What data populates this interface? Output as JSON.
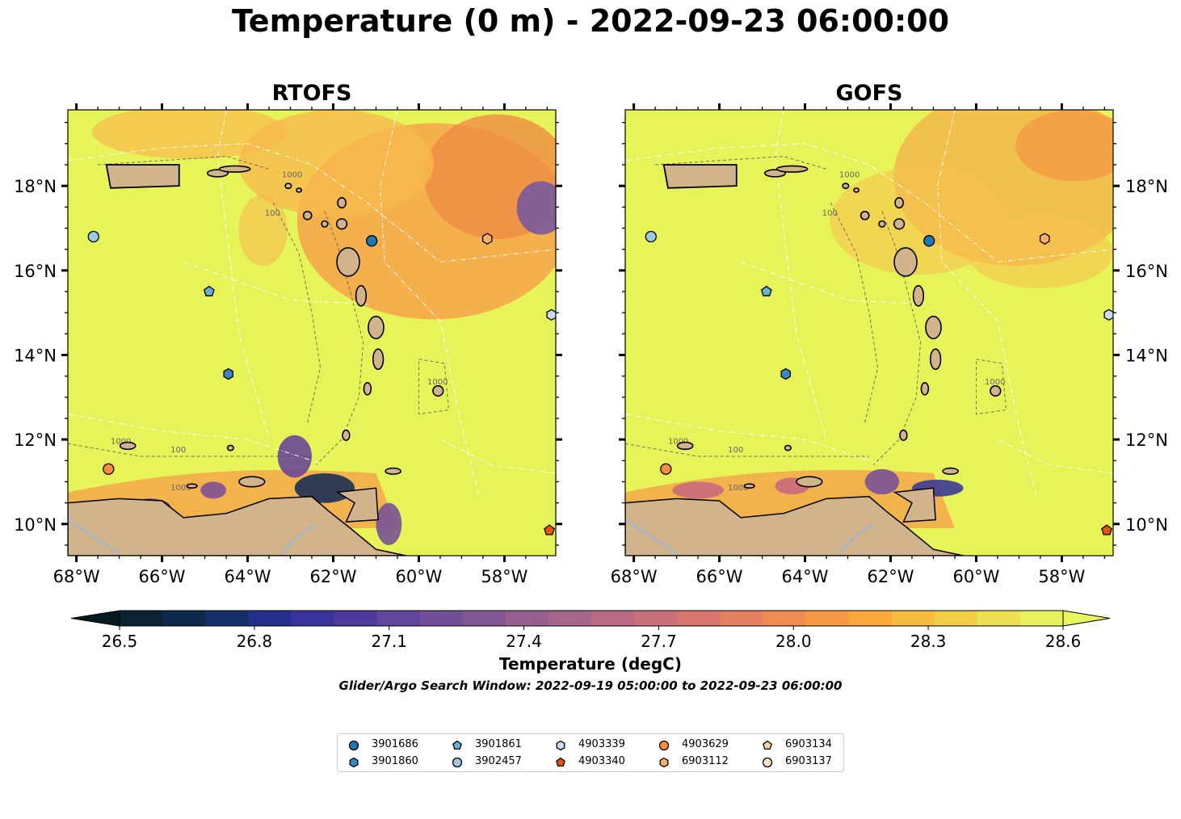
{
  "title": "Temperature (0 m) - 2022-09-23 06:00:00",
  "panels": [
    {
      "title": "RTOFS"
    },
    {
      "title": "GOFS"
    }
  ],
  "lon_ticks": [
    "68°W",
    "66°W",
    "64°W",
    "62°W",
    "60°W",
    "58°W"
  ],
  "lat_ticks": [
    "18°N",
    "16°N",
    "14°N",
    "12°N",
    "10°N"
  ],
  "contour_labels": [
    "1000",
    "100",
    "1000",
    "100",
    "1000",
    "1000"
  ],
  "colorbar": {
    "label": "Temperature (degC)",
    "ticks": [
      "26.5",
      "26.8",
      "27.1",
      "27.4",
      "27.7",
      "28.0",
      "28.3",
      "28.6"
    ],
    "min": 26.5,
    "max": 28.6,
    "colors": [
      "#0b2230",
      "#0d2a4d",
      "#13306a",
      "#232f8a",
      "#3a339c",
      "#4f3a9c",
      "#61449b",
      "#724e98",
      "#835794",
      "#965f90",
      "#a6658b",
      "#b86b83",
      "#c8717a",
      "#d9766f",
      "#e57f62",
      "#ee8c52",
      "#f59945",
      "#f9a93c",
      "#f7bb3f",
      "#f2cd48",
      "#ecdf52",
      "#e6f25e"
    ]
  },
  "search_window": "Glider/Argo Search Window: 2022-09-19 05:00:00 to 2022-09-23 06:00:00",
  "legend": [
    {
      "label": "3901686",
      "marker": "circle",
      "color": "#1f77b4"
    },
    {
      "label": "3901860",
      "marker": "hexagon",
      "color": "#3a87c4"
    },
    {
      "label": "3901861",
      "marker": "pentagon",
      "color": "#6aaed6"
    },
    {
      "label": "3902457",
      "marker": "circle",
      "color": "#9ecae1"
    },
    {
      "label": "4903339",
      "marker": "hexagon",
      "color": "#c6dbef"
    },
    {
      "label": "4903340",
      "marker": "pentagon",
      "color": "#e6550d"
    },
    {
      "label": "4903629",
      "marker": "circle",
      "color": "#fd8d3c"
    },
    {
      "label": "6903112",
      "marker": "hexagon",
      "color": "#fdae6b"
    },
    {
      "label": "6903134",
      "marker": "pentagon",
      "color": "#fdd0a2"
    },
    {
      "label": "6903137",
      "marker": "circle",
      "color": "#fee6ce"
    }
  ],
  "map_extent": {
    "lon": [
      -68.2,
      -56.8
    ],
    "lat": [
      9.25,
      19.8
    ]
  },
  "floats": [
    {
      "id": "3902457",
      "lon": -67.6,
      "lat": 16.8
    },
    {
      "id": "3901686",
      "lon": -61.1,
      "lat": 16.7
    },
    {
      "id": "6903112",
      "lon": -58.4,
      "lat": 16.75
    },
    {
      "id": "3901861",
      "lon": -64.9,
      "lat": 15.5
    },
    {
      "id": "4903339",
      "lon": -56.9,
      "lat": 14.95
    },
    {
      "id": "3901860",
      "lon": -64.45,
      "lat": 13.55
    },
    {
      "id": "4903629",
      "lon": -67.25,
      "lat": 11.3
    },
    {
      "id": "4903340",
      "lon": -56.95,
      "lat": 9.85
    }
  ]
}
